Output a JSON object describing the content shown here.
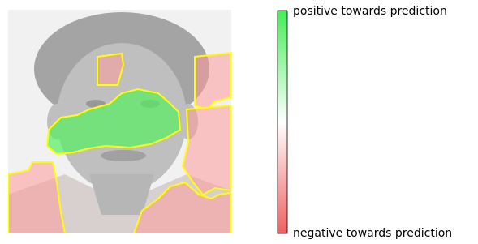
{
  "colorbar": {
    "top_label": "positive towards prediction",
    "bottom_label": "negative towards prediction"
  }
}
